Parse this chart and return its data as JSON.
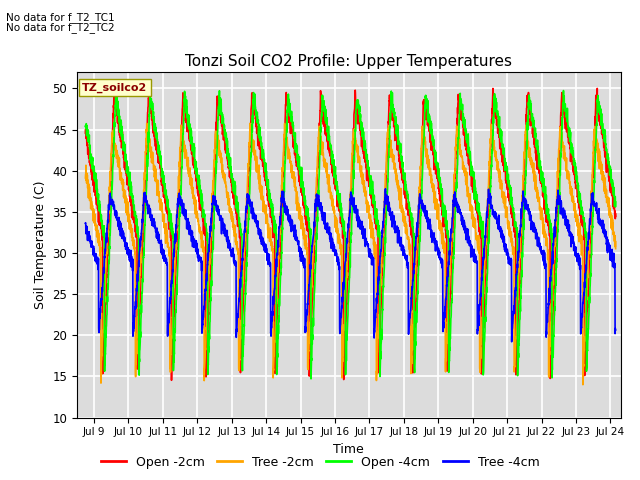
{
  "title": "Tonzi Soil CO2 Profile: Upper Temperatures",
  "xlabel": "Time",
  "ylabel": "Soil Temperature (C)",
  "ylim": [
    10,
    52
  ],
  "xlim_days": [
    8.5,
    24.3
  ],
  "background_color": "#dcdcdc",
  "grid_color": "white",
  "annotation_lines": [
    "No data for f_T2_TC1",
    "No data for f_T2_TC2"
  ],
  "dataset_label": "TZ_soilco2",
  "legend_entries": [
    "Open -2cm",
    "Tree -2cm",
    "Open -4cm",
    "Tree -4cm"
  ],
  "line_colors": [
    "red",
    "orange",
    "lime",
    "blue"
  ],
  "x_tick_labels": [
    "Jul 9",
    "Jul 10",
    "Jul 11",
    "Jul 12",
    "Jul 13",
    "Jul 14",
    "Jul 15",
    "Jul 16",
    "Jul 17",
    "Jul 18",
    "Jul 19",
    "Jul 20",
    "Jul 21",
    "Jul 22",
    "Jul 23",
    "Jul 24"
  ],
  "x_tick_positions": [
    9,
    10,
    11,
    12,
    13,
    14,
    15,
    16,
    17,
    18,
    19,
    20,
    21,
    22,
    23,
    24
  ],
  "start_day": 8.75,
  "end_day": 24.15
}
